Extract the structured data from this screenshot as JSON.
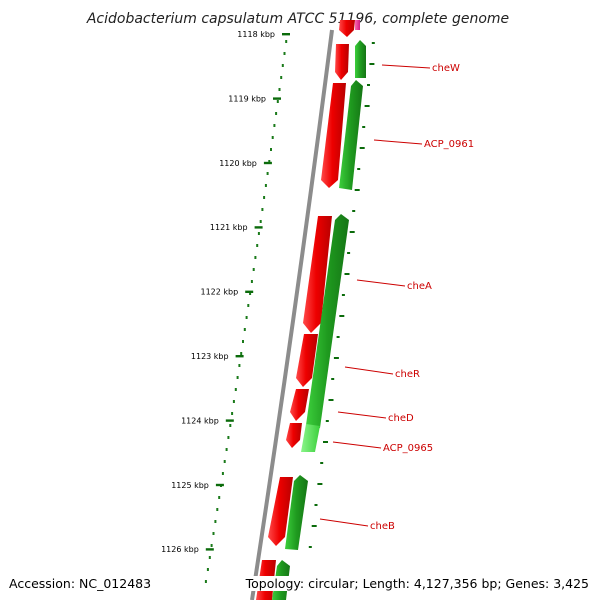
{
  "title": "Acidobacterium capsulatum ATCC 51196, complete genome",
  "footer": {
    "accession": "Accession: NC_012483",
    "topology": "Topology: circular; Length: 4,127,356 bp; Genes: 3,425"
  },
  "colors": {
    "forward_strand": "#ee0000",
    "reverse_strand": "#22aa22",
    "reverse_light": "#55dd55",
    "rna": "#ff3399",
    "backbone": "#888888",
    "ruler": "#006600",
    "label": "#cc0000"
  },
  "scale_ticks": [
    "1118 kbp",
    "1119 kbp",
    "1120 kbp",
    "1121 kbp",
    "1122 kbp",
    "1123 kbp",
    "1124 kbp",
    "1125 kbp",
    "1126 kbp"
  ],
  "gene_labels": [
    "cheW",
    "ACP_0961",
    "cheA",
    "cheR",
    "cheD",
    "ACP_0965",
    "cheB"
  ]
}
